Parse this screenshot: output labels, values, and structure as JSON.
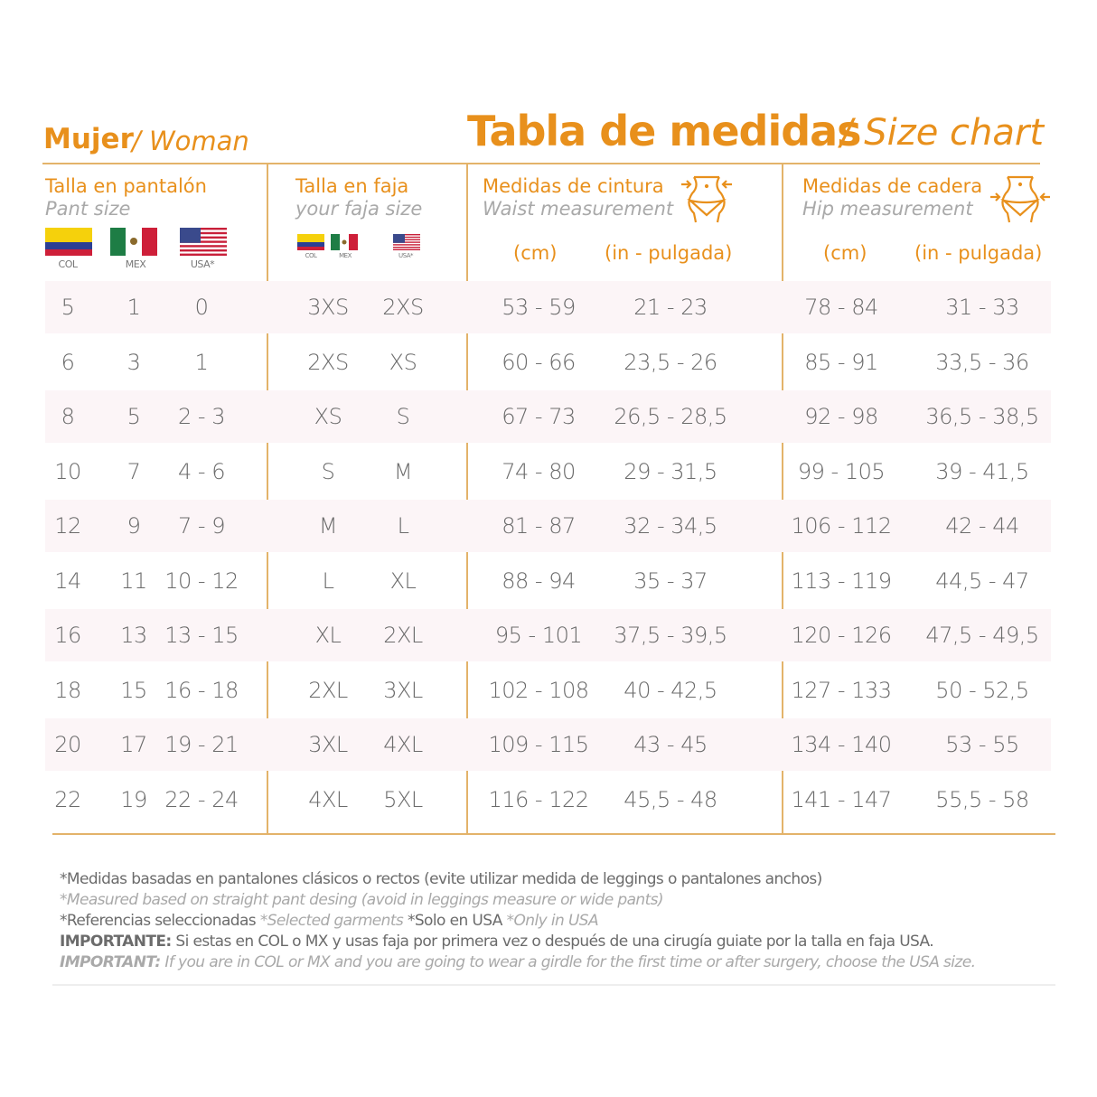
{
  "header": {
    "left_title": "Mujer",
    "left_subtitle": "/ Woman",
    "main_title": "Tabla de medidas",
    "main_subtitle": "/ Size chart"
  },
  "colors": {
    "accent": "#e8901c",
    "divider": "#e3b36a",
    "row_shade": "#fcf5f7"
  },
  "columns": {
    "pant": {
      "title": "Talla en pantalón",
      "subtitle": "Pant size",
      "flags": [
        "COL",
        "MEX",
        "USA*"
      ]
    },
    "faja": {
      "title": "Talla en faja",
      "subtitle": "your faja size",
      "flags": [
        "COL",
        "MEX",
        "USA*"
      ]
    },
    "waist": {
      "title": "Medidas de cintura",
      "subtitle": "Waist measurement",
      "icon": "waist-body-icon",
      "units": [
        "(cm)",
        "(in - pulgada)"
      ]
    },
    "hip": {
      "title": "Medidas de cadera",
      "subtitle": "Hip measurement",
      "icon": "hip-body-icon",
      "units": [
        "(cm)",
        "(in - pulgada)"
      ]
    }
  },
  "rows": [
    [
      "5",
      "1",
      "0",
      "3XS",
      "2XS",
      "53 - 59",
      "21 - 23",
      "78 - 84",
      "31 - 33"
    ],
    [
      "6",
      "3",
      "1",
      "2XS",
      "XS",
      "60 - 66",
      "23,5 - 26",
      "85 - 91",
      "33,5 - 36"
    ],
    [
      "8",
      "5",
      "2 - 3",
      "XS",
      "S",
      "67 - 73",
      "26,5 - 28,5",
      "92 - 98",
      "36,5 - 38,5"
    ],
    [
      "10",
      "7",
      "4 - 6",
      "S",
      "M",
      "74 - 80",
      "29 - 31,5",
      "99 - 105",
      "39 - 41,5"
    ],
    [
      "12",
      "9",
      "7 - 9",
      "M",
      "L",
      "81 - 87",
      "32 - 34,5",
      "106 - 112",
      "42 - 44"
    ],
    [
      "14",
      "11",
      "10 - 12",
      "L",
      "XL",
      "88 - 94",
      "35 - 37",
      "113 - 119",
      "44,5 - 47"
    ],
    [
      "16",
      "13",
      "13 - 15",
      "XL",
      "2XL",
      "95 - 101",
      "37,5 - 39,5",
      "120 - 126",
      "47,5 - 49,5"
    ],
    [
      "18",
      "15",
      "16 - 18",
      "2XL",
      "3XL",
      "102 - 108",
      "40 - 42,5",
      "127 - 133",
      "50 - 52,5"
    ],
    [
      "20",
      "17",
      "19 - 21",
      "3XL",
      "4XL",
      "109 - 115",
      "43 - 45",
      "134 - 140",
      "53 - 55"
    ],
    [
      "22",
      "19",
      "22 - 24",
      "4XL",
      "5XL",
      "116 - 122",
      "45,5 - 48",
      "141 - 147",
      "55,5 - 58"
    ]
  ],
  "footer": {
    "line1": "*Medidas basadas en pantalones clásicos o rectos (evite utilizar medida de leggings o pantalones anchos)",
    "line2": "*Measured based on straight pant desing (avoid in leggings measure or wide pants)",
    "line3_a": "*Referencias seleccionadas",
    "line3_b": "*Selected garments",
    "line3_c": "*Solo en USA",
    "line3_d": "*Only in USA",
    "line4_label": "IMPORTANTE:",
    "line4_text": "Si estas en COL o MX y usas faja por primera vez o después de una cirugía guiate por la talla en faja USA.",
    "line5_label": "IMPORTANT:",
    "line5_text": "If you are in COL or MX and you are going to wear a girdle for the first time or after surgery, choose the USA size."
  }
}
